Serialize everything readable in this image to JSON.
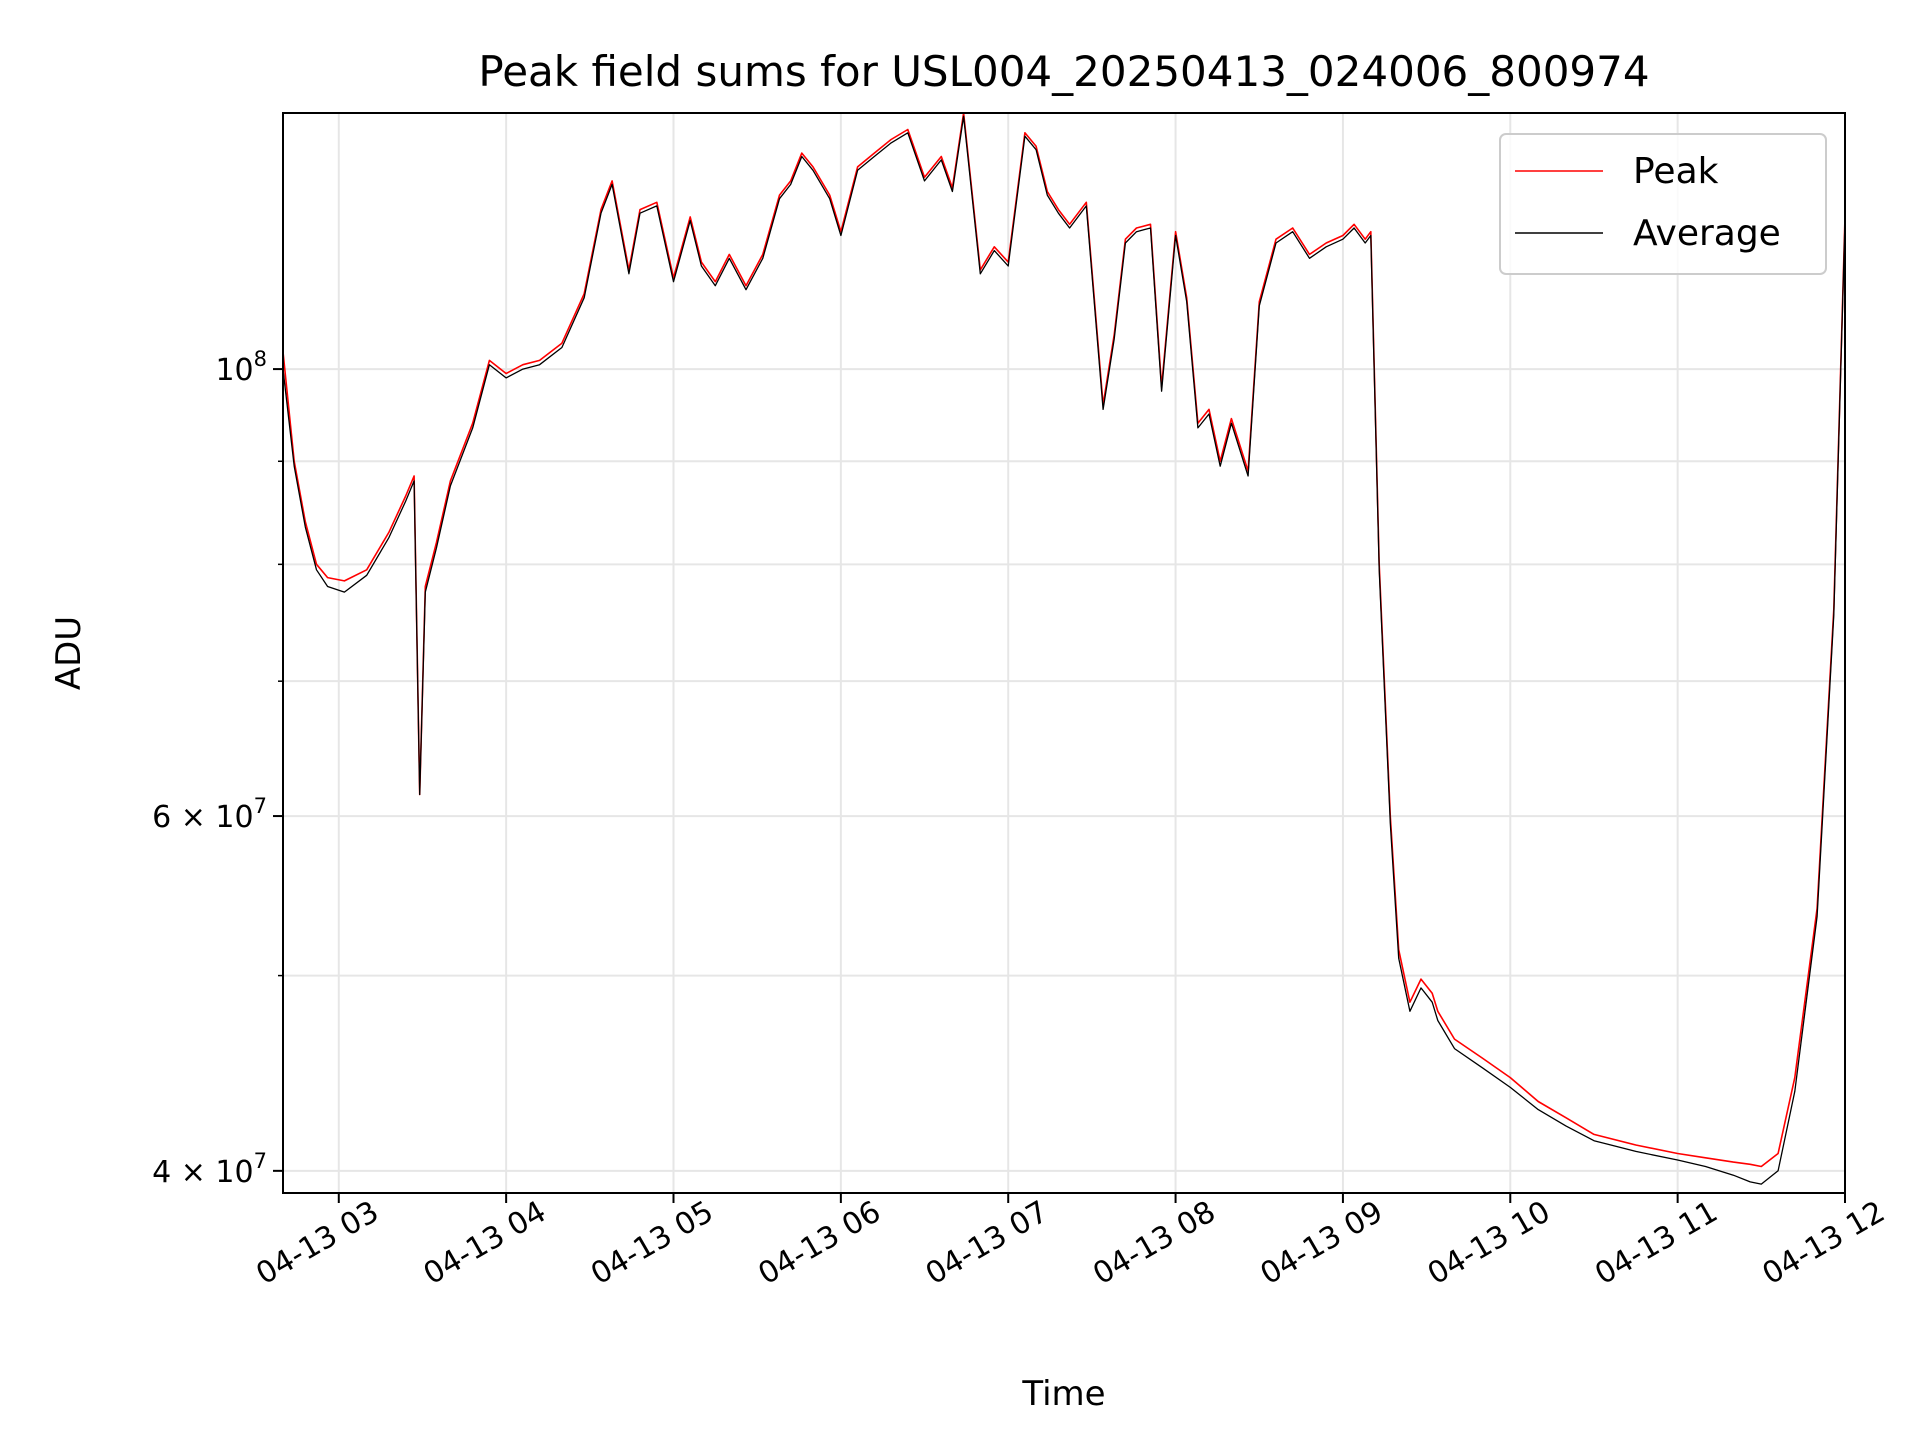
{
  "chart_data": {
    "type": "line",
    "title": "Peak field sums for USL004_20250413_024006_800974",
    "xlabel": "Time",
    "ylabel": "ADU",
    "yscale": "log",
    "grid": true,
    "legend_position": "top-right",
    "xlim": [
      "2025-04-13 02:40",
      "2025-04-13 12:00"
    ],
    "ylim": [
      39000000,
      134000000
    ],
    "x_ticks": [
      "2025-04-13 03:00",
      "2025-04-13 04:00",
      "2025-04-13 05:00",
      "2025-04-13 06:00",
      "2025-04-13 07:00",
      "2025-04-13 08:00",
      "2025-04-13 09:00",
      "2025-04-13 10:00",
      "2025-04-13 11:00",
      "2025-04-13 12:00"
    ],
    "x_tick_labels": [
      "04-13 03",
      "04-13 04",
      "04-13 05",
      "04-13 06",
      "04-13 07",
      "04-13 08",
      "04-13 09",
      "04-13 10",
      "04-13 11",
      "04-13 12"
    ],
    "y_ticks": [
      100000000,
      60000000,
      40000000
    ],
    "y_tick_labels": [
      {
        "mantissa": "",
        "base": "10",
        "exp": "8"
      },
      {
        "mantissa": "6 × ",
        "base": "10",
        "exp": "7"
      },
      {
        "mantissa": "4 × ",
        "base": "10",
        "exp": "7"
      }
    ],
    "y_minor_ticks": [
      50000000,
      70000000,
      80000000,
      90000000
    ],
    "series": [
      {
        "name": "Peak",
        "color": "#ff0000",
        "x": [
          "2025-04-13 02:40",
          "2025-04-13 02:44",
          "2025-04-13 02:48",
          "2025-04-13 02:52",
          "2025-04-13 02:56",
          "2025-04-13 03:02",
          "2025-04-13 03:10",
          "2025-04-13 03:18",
          "2025-04-13 03:24",
          "2025-04-13 03:27",
          "2025-04-13 03:29",
          "2025-04-13 03:31",
          "2025-04-13 03:35",
          "2025-04-13 03:40",
          "2025-04-13 03:48",
          "2025-04-13 03:54",
          "2025-04-13 04:00",
          "2025-04-13 04:06",
          "2025-04-13 04:12",
          "2025-04-13 04:20",
          "2025-04-13 04:28",
          "2025-04-13 04:34",
          "2025-04-13 04:38",
          "2025-04-13 04:44",
          "2025-04-13 04:48",
          "2025-04-13 04:54",
          "2025-04-13 05:00",
          "2025-04-13 05:06",
          "2025-04-13 05:10",
          "2025-04-13 05:15",
          "2025-04-13 05:20",
          "2025-04-13 05:26",
          "2025-04-13 05:32",
          "2025-04-13 05:38",
          "2025-04-13 05:42",
          "2025-04-13 05:46",
          "2025-04-13 05:50",
          "2025-04-13 05:56",
          "2025-04-13 06:00",
          "2025-04-13 06:06",
          "2025-04-13 06:12",
          "2025-04-13 06:18",
          "2025-04-13 06:24",
          "2025-04-13 06:30",
          "2025-04-13 06:36",
          "2025-04-13 06:40",
          "2025-04-13 06:44",
          "2025-04-13 06:50",
          "2025-04-13 06:55",
          "2025-04-13 07:00",
          "2025-04-13 07:06",
          "2025-04-13 07:10",
          "2025-04-13 07:14",
          "2025-04-13 07:18",
          "2025-04-13 07:22",
          "2025-04-13 07:28",
          "2025-04-13 07:34",
          "2025-04-13 07:38",
          "2025-04-13 07:42",
          "2025-04-13 07:46",
          "2025-04-13 07:51",
          "2025-04-13 07:55",
          "2025-04-13 08:00",
          "2025-04-13 08:04",
          "2025-04-13 08:08",
          "2025-04-13 08:12",
          "2025-04-13 08:16",
          "2025-04-13 08:20",
          "2025-04-13 08:26",
          "2025-04-13 08:30",
          "2025-04-13 08:36",
          "2025-04-13 08:42",
          "2025-04-13 08:48",
          "2025-04-13 08:54",
          "2025-04-13 09:00",
          "2025-04-13 09:04",
          "2025-04-13 09:08",
          "2025-04-13 09:10",
          "2025-04-13 09:13",
          "2025-04-13 09:17",
          "2025-04-13 09:20",
          "2025-04-13 09:24",
          "2025-04-13 09:28",
          "2025-04-13 09:32",
          "2025-04-13 09:34",
          "2025-04-13 09:40",
          "2025-04-13 09:50",
          "2025-04-13 10:00",
          "2025-04-13 10:10",
          "2025-04-13 10:20",
          "2025-04-13 10:30",
          "2025-04-13 10:45",
          "2025-04-13 11:00",
          "2025-04-13 11:10",
          "2025-04-13 11:20",
          "2025-04-13 11:26",
          "2025-04-13 11:30",
          "2025-04-13 11:36",
          "2025-04-13 11:42",
          "2025-04-13 11:50",
          "2025-04-13 11:56",
          "2025-04-13 12:00"
        ],
        "values": [
          102000000,
          90000000,
          84000000,
          80000000,
          78800000,
          78500000,
          79500000,
          83000000,
          86500000,
          88500000,
          61500000,
          78000000,
          82000000,
          88000000,
          94000000,
          101000000,
          99500000,
          100500000,
          101000000,
          103000000,
          109000000,
          120000000,
          124000000,
          112000000,
          120000000,
          121000000,
          111000000,
          119000000,
          113000000,
          110500000,
          114000000,
          110000000,
          114000000,
          122000000,
          124000000,
          128000000,
          126000000,
          122000000,
          117000000,
          126000000,
          128000000,
          130000000,
          131500000,
          124500000,
          127500000,
          123000000,
          134000000,
          112000000,
          115000000,
          113000000,
          131000000,
          129000000,
          122500000,
          120000000,
          118000000,
          121000000,
          96000000,
          104000000,
          116000000,
          117500000,
          118000000,
          98000000,
          117000000,
          108500000,
          94000000,
          95500000,
          90000000,
          94500000,
          89000000,
          108000000,
          116000000,
          117500000,
          114000000,
          115500000,
          116500000,
          118000000,
          116000000,
          117000000,
          80000000,
          60000000,
          51500000,
          48500000,
          49800000,
          49000000,
          48000000,
          46500000,
          45500000,
          44500000,
          43300000,
          42500000,
          41700000,
          41200000,
          40800000,
          40600000,
          40400000,
          40300000,
          40200000,
          40800000,
          44500000,
          54000000,
          76000000,
          119000000
        ]
      },
      {
        "name": "Average",
        "color": "#000000",
        "x": [
          "2025-04-13 02:40",
          "2025-04-13 02:44",
          "2025-04-13 02:48",
          "2025-04-13 02:52",
          "2025-04-13 02:56",
          "2025-04-13 03:02",
          "2025-04-13 03:10",
          "2025-04-13 03:18",
          "2025-04-13 03:24",
          "2025-04-13 03:27",
          "2025-04-13 03:29",
          "2025-04-13 03:31",
          "2025-04-13 03:35",
          "2025-04-13 03:40",
          "2025-04-13 03:48",
          "2025-04-13 03:54",
          "2025-04-13 04:00",
          "2025-04-13 04:06",
          "2025-04-13 04:12",
          "2025-04-13 04:20",
          "2025-04-13 04:28",
          "2025-04-13 04:34",
          "2025-04-13 04:38",
          "2025-04-13 04:44",
          "2025-04-13 04:48",
          "2025-04-13 04:54",
          "2025-04-13 05:00",
          "2025-04-13 05:06",
          "2025-04-13 05:10",
          "2025-04-13 05:15",
          "2025-04-13 05:20",
          "2025-04-13 05:26",
          "2025-04-13 05:32",
          "2025-04-13 05:38",
          "2025-04-13 05:42",
          "2025-04-13 05:46",
          "2025-04-13 05:50",
          "2025-04-13 05:56",
          "2025-04-13 06:00",
          "2025-04-13 06:06",
          "2025-04-13 06:12",
          "2025-04-13 06:18",
          "2025-04-13 06:24",
          "2025-04-13 06:30",
          "2025-04-13 06:36",
          "2025-04-13 06:40",
          "2025-04-13 06:44",
          "2025-04-13 06:50",
          "2025-04-13 06:55",
          "2025-04-13 07:00",
          "2025-04-13 07:06",
          "2025-04-13 07:10",
          "2025-04-13 07:14",
          "2025-04-13 07:18",
          "2025-04-13 07:22",
          "2025-04-13 07:28",
          "2025-04-13 07:34",
          "2025-04-13 07:38",
          "2025-04-13 07:42",
          "2025-04-13 07:46",
          "2025-04-13 07:51",
          "2025-04-13 07:55",
          "2025-04-13 08:00",
          "2025-04-13 08:04",
          "2025-04-13 08:08",
          "2025-04-13 08:12",
          "2025-04-13 08:16",
          "2025-04-13 08:20",
          "2025-04-13 08:26",
          "2025-04-13 08:30",
          "2025-04-13 08:36",
          "2025-04-13 08:42",
          "2025-04-13 08:48",
          "2025-04-13 08:54",
          "2025-04-13 09:00",
          "2025-04-13 09:04",
          "2025-04-13 09:08",
          "2025-04-13 09:10",
          "2025-04-13 09:13",
          "2025-04-13 09:17",
          "2025-04-13 09:20",
          "2025-04-13 09:24",
          "2025-04-13 09:28",
          "2025-04-13 09:32",
          "2025-04-13 09:34",
          "2025-04-13 09:40",
          "2025-04-13 09:50",
          "2025-04-13 10:00",
          "2025-04-13 10:10",
          "2025-04-13 10:20",
          "2025-04-13 10:30",
          "2025-04-13 10:45",
          "2025-04-13 11:00",
          "2025-04-13 11:10",
          "2025-04-13 11:20",
          "2025-04-13 11:26",
          "2025-04-13 11:30",
          "2025-04-13 11:36",
          "2025-04-13 11:42",
          "2025-04-13 11:50",
          "2025-04-13 11:56",
          "2025-04-13 12:00"
        ],
        "values": [
          100000000,
          89500000,
          83500000,
          79500000,
          78000000,
          77500000,
          79000000,
          82500000,
          86000000,
          88000000,
          61500000,
          77500000,
          81500000,
          87500000,
          93500000,
          100500000,
          99000000,
          100000000,
          100500000,
          102500000,
          108500000,
          119500000,
          123500000,
          111500000,
          119500000,
          120500000,
          110500000,
          118500000,
          112500000,
          110000000,
          113500000,
          109500000,
          113500000,
          121500000,
          123500000,
          127500000,
          125500000,
          121500000,
          116500000,
          125500000,
          127500000,
          129500000,
          131000000,
          124000000,
          127000000,
          122500000,
          133500000,
          111500000,
          114500000,
          112500000,
          130500000,
          128500000,
          122000000,
          119500000,
          117500000,
          120500000,
          95500000,
          103500000,
          115500000,
          117000000,
          117500000,
          97500000,
          116500000,
          108000000,
          93500000,
          95000000,
          89500000,
          94000000,
          88500000,
          107500000,
          115500000,
          117000000,
          113500000,
          115000000,
          116000000,
          117500000,
          115500000,
          116500000,
          79500000,
          59500000,
          51000000,
          48000000,
          49300000,
          48500000,
          47500000,
          46000000,
          45000000,
          44000000,
          42900000,
          42100000,
          41400000,
          40900000,
          40500000,
          40200000,
          39800000,
          39500000,
          39400000,
          40000000,
          43800000,
          53500000,
          75500000,
          118500000
        ]
      }
    ]
  }
}
